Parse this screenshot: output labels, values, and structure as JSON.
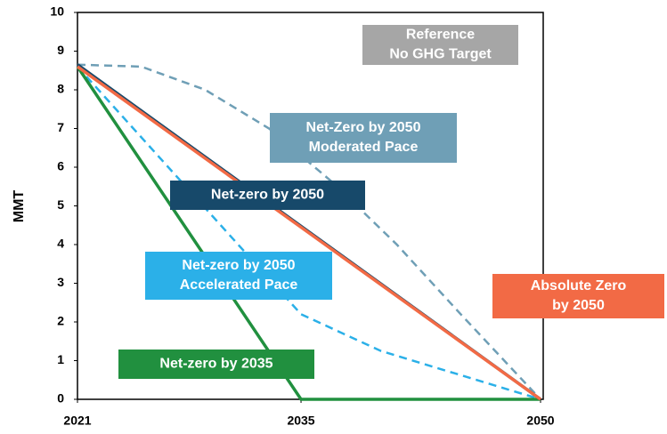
{
  "chart_data": {
    "type": "line",
    "ylabel": "MMT",
    "xlim": [
      2021,
      2050
    ],
    "xticks": [
      2021,
      2035,
      2050
    ],
    "ylim": [
      0,
      10
    ],
    "yticks": [
      0,
      1,
      2,
      3,
      4,
      5,
      6,
      7,
      8,
      9,
      10
    ],
    "series": [
      {
        "name": [
          "Net-Zero by 2050",
          "Moderated Pace"
        ],
        "color": "#6f9fb6",
        "dashed": true,
        "x": [
          2021,
          2025,
          2029,
          2033,
          2037,
          2041,
          2045,
          2050
        ],
        "values": [
          8.65,
          8.6,
          8.0,
          7.0,
          5.6,
          4.0,
          2.2,
          0
        ]
      },
      {
        "name": [
          "Net-zero by 2050",
          "Accelerated Pace"
        ],
        "color": "#2bb0e8",
        "dashed": true,
        "x": [
          2021,
          2035,
          2040,
          2050
        ],
        "values": [
          8.6,
          2.2,
          1.25,
          0
        ]
      },
      {
        "name": [
          "Net-zero by 2035"
        ],
        "color": "#21903f",
        "dashed": false,
        "x": [
          2021,
          2035,
          2050
        ],
        "values": [
          8.6,
          0,
          0
        ]
      },
      {
        "name": [
          "Net-zero by 2050"
        ],
        "color": "#17496a",
        "dashed": false,
        "x": [
          2021,
          2050
        ],
        "values": [
          8.65,
          0
        ]
      },
      {
        "name": [
          "Absolute Zero",
          "by 2050"
        ],
        "color": "#f26a45",
        "dashed": false,
        "x": [
          2021,
          2050
        ],
        "values": [
          8.6,
          0
        ]
      }
    ],
    "annotations": [
      {
        "lines": [
          "Reference",
          "No GHG Target"
        ],
        "color": "#a6a6a6"
      }
    ]
  }
}
